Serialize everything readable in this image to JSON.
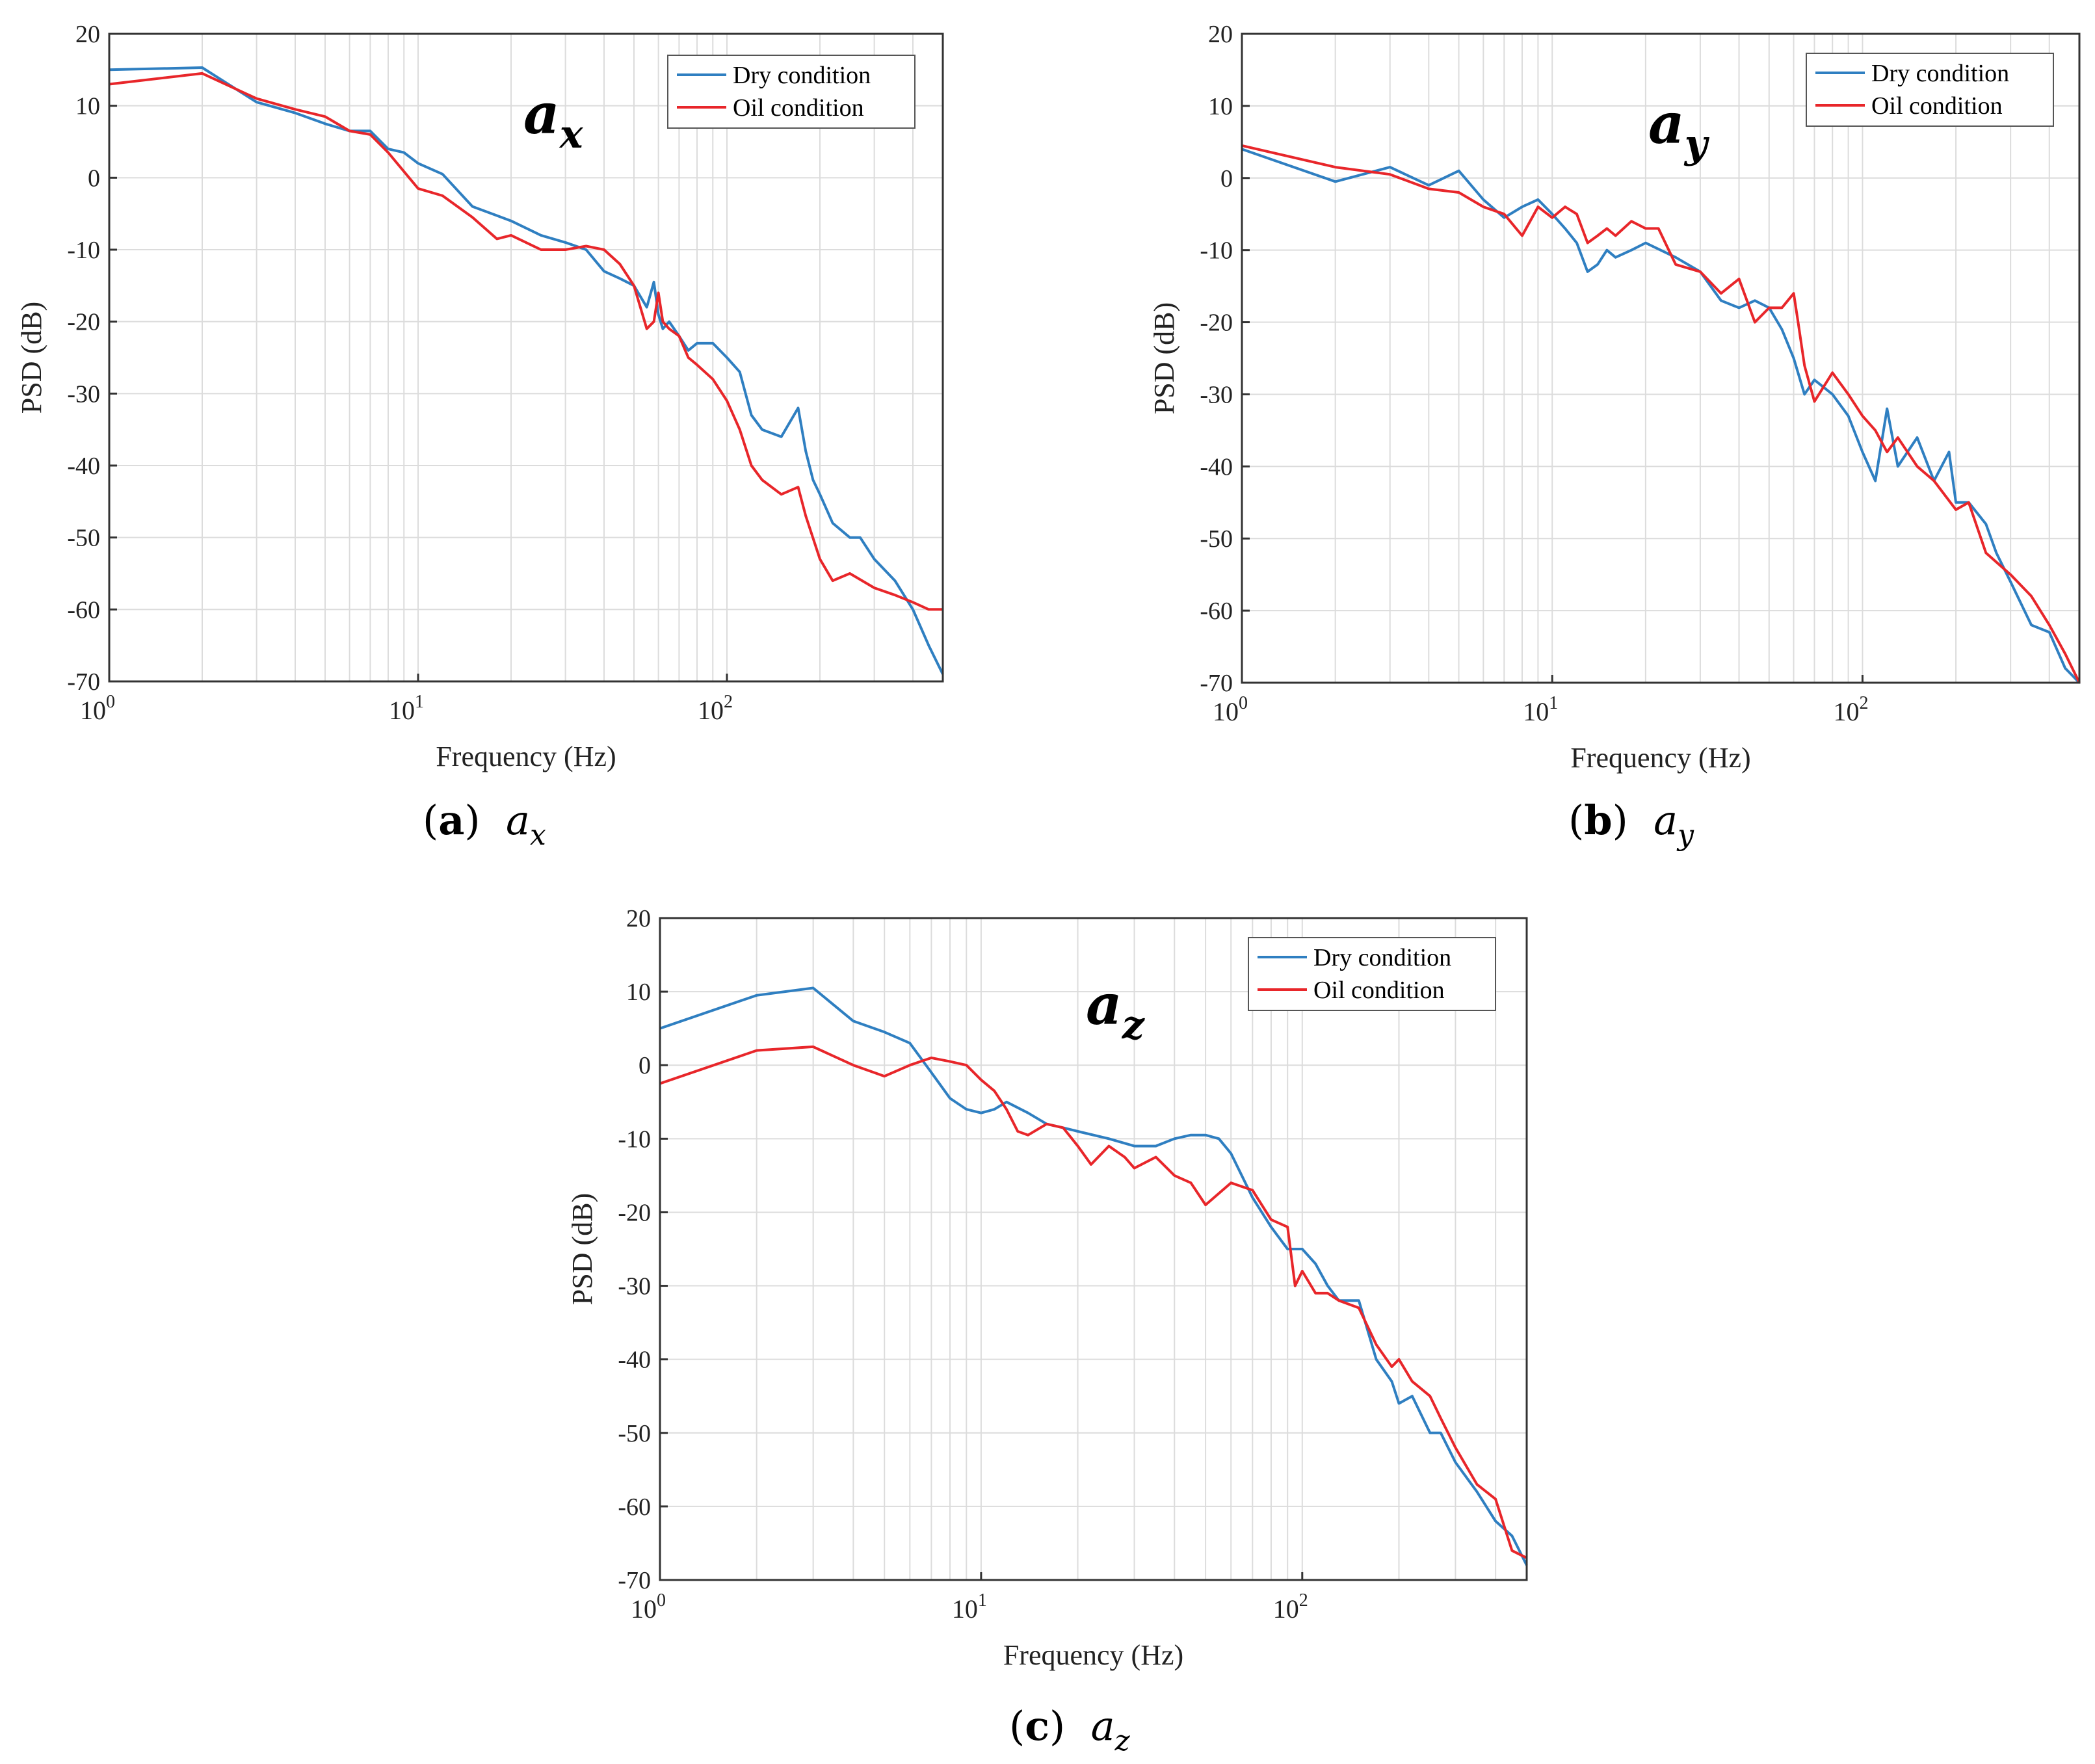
{
  "colors": {
    "dry": "#2f7fc1",
    "oil": "#e8262a",
    "grid": "#dcdcdc",
    "axis": "#333333"
  },
  "panels": [
    {
      "id": "a",
      "caption": {
        "letter": "a",
        "var": "a",
        "sub": "x"
      },
      "chart_data": {
        "type": "line",
        "title": "",
        "inset_label": {
          "base": "a",
          "sub": "x"
        },
        "xlabel": "Frequency (Hz)",
        "ylabel": "PSD (dB)",
        "xscale": "log",
        "xlim": [
          1,
          500
        ],
        "ylim": [
          -70,
          20
        ],
        "xticks": [
          {
            "value": 1,
            "base": "10",
            "exp": "0"
          },
          {
            "value": 10,
            "base": "10",
            "exp": "1"
          },
          {
            "value": 100,
            "base": "10",
            "exp": "2"
          }
        ],
        "yticks": [
          "20",
          "10",
          "0",
          "-10",
          "-20",
          "-30",
          "-40",
          "-50",
          "-60",
          "-70"
        ],
        "grid": true,
        "legend_position": "top-right",
        "series": [
          {
            "name": "Dry condition",
            "color": "#2f7fc1",
            "x": [
              1,
              2,
              3,
              4,
              5,
              6,
              7,
              8,
              9,
              10,
              12,
              15,
              20,
              25,
              30,
              35,
              40,
              45,
              50,
              55,
              58,
              60,
              62,
              65,
              70,
              75,
              80,
              90,
              100,
              110,
              120,
              130,
              150,
              170,
              180,
              190,
              200,
              220,
              250,
              270,
              300,
              350,
              400,
              450,
              500
            ],
            "y": [
              15,
              15.3,
              10.5,
              9,
              7.5,
              6.5,
              6.5,
              4,
              3.5,
              2,
              0.5,
              -4,
              -6,
              -8,
              -9,
              -10,
              -13,
              -14,
              -15,
              -18,
              -14.5,
              -19,
              -21,
              -20,
              -22,
              -24,
              -23,
              -23,
              -25,
              -27,
              -33,
              -35,
              -36,
              -32,
              -38,
              -42,
              -44,
              -48,
              -50,
              -50,
              -53,
              -56,
              -60,
              -65,
              -69
            ]
          },
          {
            "name": "Oil condition",
            "color": "#e8262a",
            "x": [
              1,
              2,
              3,
              4,
              5,
              6,
              7,
              8,
              10,
              12,
              15,
              18,
              20,
              25,
              30,
              35,
              40,
              45,
              50,
              55,
              58,
              60,
              62,
              65,
              70,
              75,
              80,
              90,
              100,
              110,
              120,
              130,
              150,
              170,
              180,
              200,
              220,
              250,
              300,
              350,
              400,
              450,
              500
            ],
            "y": [
              13,
              14.5,
              11,
              9.5,
              8.5,
              6.5,
              6,
              3.5,
              -1.5,
              -2.5,
              -5.5,
              -8.5,
              -8,
              -10,
              -10,
              -9.5,
              -10,
              -12,
              -15,
              -21,
              -20,
              -16,
              -20,
              -21,
              -22,
              -25,
              -26,
              -28,
              -31,
              -35,
              -40,
              -42,
              -44,
              -43,
              -47,
              -53,
              -56,
              -55,
              -57,
              -58,
              -59,
              -60,
              -60
            ]
          }
        ]
      }
    },
    {
      "id": "b",
      "caption": {
        "letter": "b",
        "var": "a",
        "sub": "y"
      },
      "chart_data": {
        "type": "line",
        "title": "",
        "inset_label": {
          "base": "a",
          "sub": "y"
        },
        "xlabel": "Frequency (Hz)",
        "ylabel": "PSD (dB)",
        "xscale": "log",
        "xlim": [
          1,
          500
        ],
        "ylim": [
          -70,
          20
        ],
        "xticks": [
          {
            "value": 1,
            "base": "10",
            "exp": "0"
          },
          {
            "value": 10,
            "base": "10",
            "exp": "1"
          },
          {
            "value": 100,
            "base": "10",
            "exp": "2"
          }
        ],
        "yticks": [
          "20",
          "10",
          "0",
          "-10",
          "-20",
          "-30",
          "-40",
          "-50",
          "-60",
          "-70"
        ],
        "grid": true,
        "legend_position": "top-right",
        "series": [
          {
            "name": "Dry condition",
            "color": "#2f7fc1",
            "x": [
              1,
              2,
              3,
              4,
              5,
              6,
              7,
              8,
              9,
              10,
              11,
              12,
              13,
              14,
              15,
              16,
              18,
              20,
              25,
              30,
              35,
              40,
              45,
              50,
              55,
              60,
              65,
              70,
              80,
              90,
              100,
              110,
              120,
              130,
              150,
              170,
              190,
              200,
              220,
              250,
              270,
              300,
              350,
              400,
              450,
              500
            ],
            "y": [
              4,
              -0.5,
              1.5,
              -1,
              1,
              -3,
              -5.5,
              -4,
              -3,
              -5,
              -7,
              -9,
              -13,
              -12,
              -10,
              -11,
              -10,
              -9,
              -11,
              -13,
              -17,
              -18,
              -17,
              -18,
              -21,
              -25,
              -30,
              -28,
              -30,
              -33,
              -38,
              -42,
              -32,
              -40,
              -36,
              -42,
              -38,
              -45,
              -45,
              -48,
              -52,
              -56,
              -62,
              -63,
              -68,
              -70
            ]
          },
          {
            "name": "Oil condition",
            "color": "#e8262a",
            "x": [
              1,
              2,
              3,
              4,
              5,
              6,
              7,
              8,
              9,
              10,
              11,
              12,
              13,
              14,
              15,
              16,
              18,
              20,
              22,
              25,
              30,
              35,
              40,
              45,
              50,
              55,
              60,
              62,
              65,
              70,
              80,
              90,
              100,
              110,
              120,
              130,
              150,
              170,
              200,
              220,
              250,
              300,
              350,
              400,
              450,
              500
            ],
            "y": [
              4.5,
              1.5,
              0.5,
              -1.5,
              -2,
              -4,
              -5,
              -8,
              -4,
              -5.5,
              -4,
              -5,
              -9,
              -8,
              -7,
              -8,
              -6,
              -7,
              -7,
              -12,
              -13,
              -16,
              -14,
              -20,
              -18,
              -18,
              -16,
              -20,
              -26,
              -31,
              -27,
              -30,
              -33,
              -35,
              -38,
              -36,
              -40,
              -42,
              -46,
              -45,
              -52,
              -55,
              -58,
              -62,
              -66,
              -70
            ]
          }
        ]
      }
    },
    {
      "id": "c",
      "caption": {
        "letter": "c",
        "var": "a",
        "sub": "z"
      },
      "chart_data": {
        "type": "line",
        "title": "",
        "inset_label": {
          "base": "a",
          "sub": "z"
        },
        "xlabel": "Frequency (Hz)",
        "ylabel": "PSD (dB)",
        "xscale": "log",
        "xlim": [
          1,
          500
        ],
        "ylim": [
          -70,
          20
        ],
        "xticks": [
          {
            "value": 1,
            "base": "10",
            "exp": "0"
          },
          {
            "value": 10,
            "base": "10",
            "exp": "1"
          },
          {
            "value": 100,
            "base": "10",
            "exp": "2"
          }
        ],
        "yticks": [
          "20",
          "10",
          "0",
          "-10",
          "-20",
          "-30",
          "-40",
          "-50",
          "-60",
          "-70"
        ],
        "grid": true,
        "legend_position": "top-right",
        "series": [
          {
            "name": "Dry condition",
            "color": "#2f7fc1",
            "x": [
              1,
              2,
              3,
              4,
              5,
              6,
              7,
              8,
              9,
              10,
              11,
              12,
              14,
              16,
              18,
              20,
              25,
              30,
              35,
              40,
              45,
              50,
              55,
              60,
              70,
              80,
              90,
              100,
              110,
              120,
              130,
              150,
              170,
              190,
              200,
              220,
              250,
              270,
              300,
              350,
              400,
              450,
              500
            ],
            "y": [
              5,
              9.5,
              10.5,
              6,
              4.5,
              3,
              -1,
              -4.5,
              -6,
              -6.5,
              -6,
              -5,
              -6.5,
              -8,
              -8.5,
              -9,
              -10,
              -11,
              -11,
              -10,
              -9.5,
              -9.5,
              -10,
              -12,
              -18,
              -22,
              -25,
              -25,
              -27,
              -30,
              -32,
              -32,
              -40,
              -43,
              -46,
              -45,
              -50,
              -50,
              -54,
              -58,
              -62,
              -64,
              -68
            ]
          },
          {
            "name": "Oil condition",
            "color": "#e8262a",
            "x": [
              1,
              2,
              3,
              4,
              5,
              6,
              7,
              8,
              9,
              10,
              11,
              12,
              13,
              14,
              16,
              18,
              20,
              22,
              25,
              28,
              30,
              35,
              40,
              45,
              50,
              60,
              70,
              80,
              90,
              95,
              100,
              110,
              120,
              130,
              150,
              170,
              190,
              200,
              220,
              250,
              270,
              300,
              350,
              400,
              450,
              500
            ],
            "y": [
              -2.5,
              2,
              2.5,
              0,
              -1.5,
              0,
              1,
              0.5,
              0,
              -2,
              -3.5,
              -6,
              -9,
              -9.5,
              -8,
              -8.5,
              -11,
              -13.5,
              -11,
              -12.5,
              -14,
              -12.5,
              -15,
              -16,
              -19,
              -16,
              -17,
              -21,
              -22,
              -30,
              -28,
              -31,
              -31,
              -32,
              -33,
              -38,
              -41,
              -40,
              -43,
              -45,
              -48,
              -52,
              -57,
              -59,
              -66,
              -67
            ]
          }
        ]
      }
    }
  ]
}
